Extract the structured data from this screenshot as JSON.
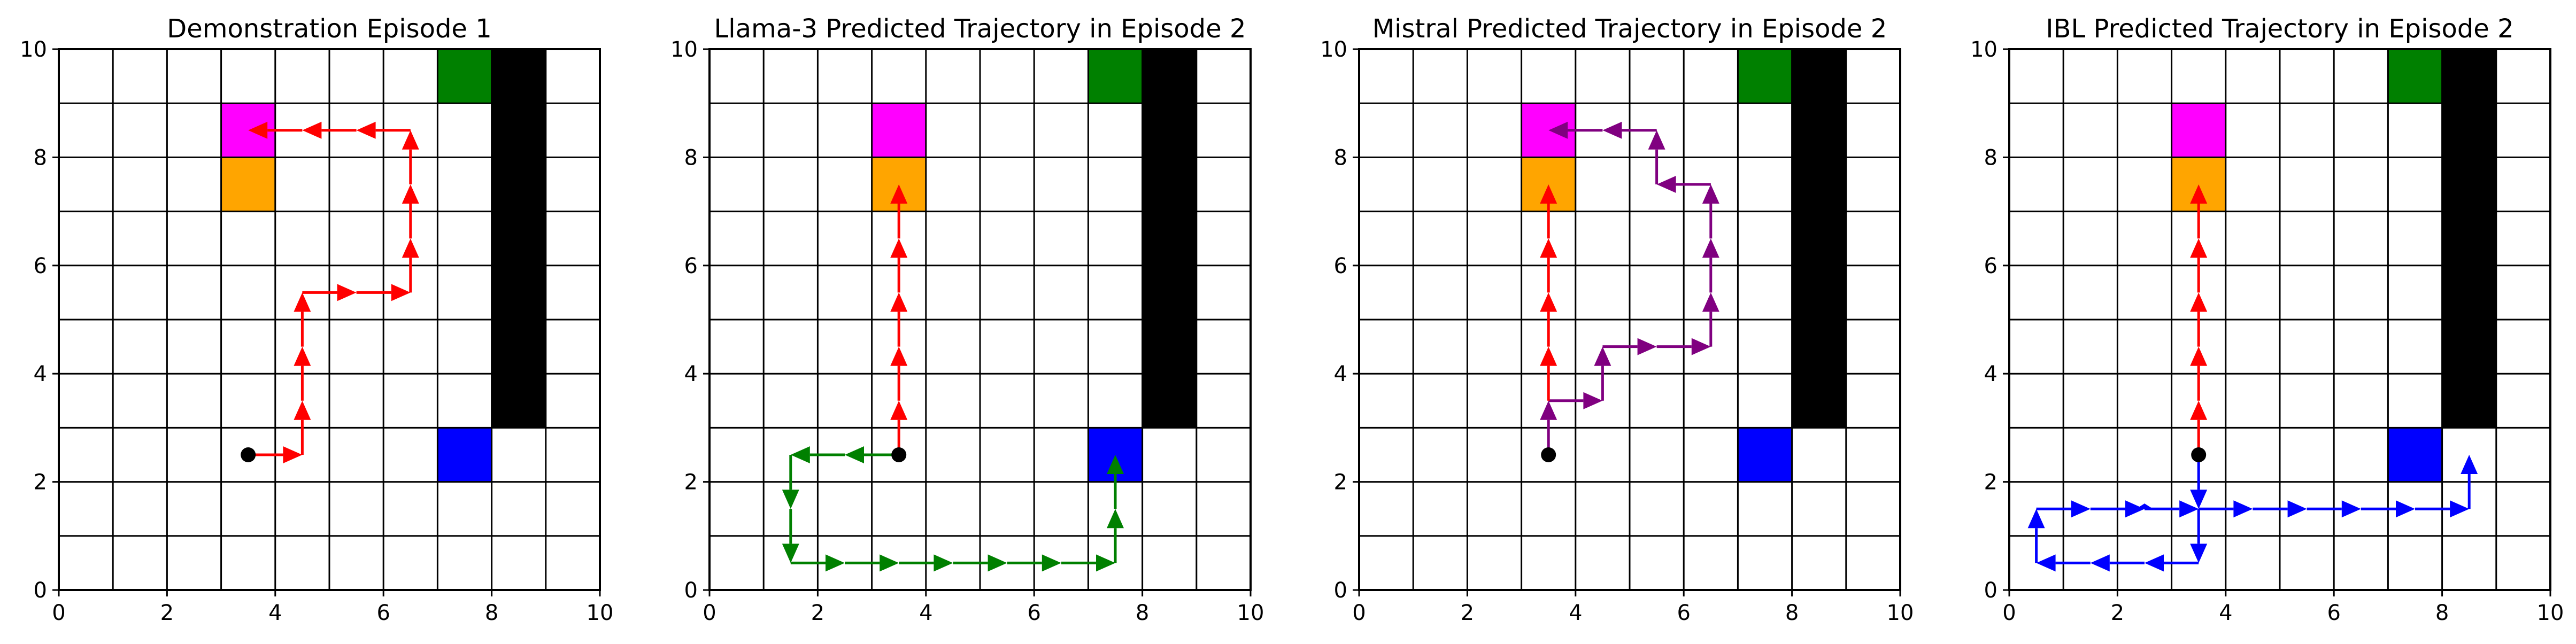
{
  "figure": {
    "panels": [
      "Demonstration Episode 1",
      "Llama-3 Predicted Trajectory in Episode 2",
      "Mistral Predicted Trajectory in Episode 2",
      "IBL Predicted Trajectory in Episode 2"
    ]
  },
  "chart_data": [
    {
      "type": "gridworld",
      "title": "Demonstration Episode 1",
      "xlim": [
        0,
        10
      ],
      "ylim": [
        0,
        10
      ],
      "xticks": [
        0,
        2,
        4,
        6,
        8,
        10
      ],
      "yticks": [
        0,
        2,
        4,
        6,
        8,
        10
      ],
      "grid": true,
      "cells": [
        {
          "x": 7,
          "y": 9,
          "color": "#008000"
        },
        {
          "x": 8,
          "y": 3,
          "w": 1,
          "h": 7,
          "color": "#000000"
        },
        {
          "x": 7,
          "y": 2,
          "color": "#0000ff"
        },
        {
          "x": 3,
          "y": 8,
          "color": "#ff00ff"
        },
        {
          "x": 3,
          "y": 7,
          "color": "#ffa500"
        }
      ],
      "start": [
        3.5,
        2.5
      ],
      "trajectories": [
        {
          "color": "#ff0000",
          "points": [
            [
              3.5,
              2.5
            ],
            [
              4.5,
              2.5
            ],
            [
              4.5,
              3.5
            ],
            [
              4.5,
              4.5
            ],
            [
              4.5,
              5.5
            ],
            [
              5.5,
              5.5
            ],
            [
              6.5,
              5.5
            ],
            [
              6.5,
              6.5
            ],
            [
              6.5,
              7.5
            ],
            [
              6.5,
              8.5
            ],
            [
              5.5,
              8.5
            ],
            [
              4.5,
              8.5
            ],
            [
              3.5,
              8.5
            ]
          ]
        }
      ]
    },
    {
      "type": "gridworld",
      "title": "Llama-3 Predicted Trajectory in Episode 2",
      "xlim": [
        0,
        10
      ],
      "ylim": [
        0,
        10
      ],
      "xticks": [
        0,
        2,
        4,
        6,
        8,
        10
      ],
      "yticks": [
        0,
        2,
        4,
        6,
        8,
        10
      ],
      "grid": true,
      "cells": [
        {
          "x": 7,
          "y": 9,
          "color": "#008000"
        },
        {
          "x": 8,
          "y": 3,
          "w": 1,
          "h": 7,
          "color": "#000000"
        },
        {
          "x": 7,
          "y": 2,
          "color": "#0000ff"
        },
        {
          "x": 3,
          "y": 8,
          "color": "#ff00ff"
        },
        {
          "x": 3,
          "y": 7,
          "color": "#ffa500"
        }
      ],
      "start": [
        3.5,
        2.5
      ],
      "trajectories": [
        {
          "color": "#008000",
          "points": [
            [
              3.5,
              2.5
            ],
            [
              2.5,
              2.5
            ],
            [
              1.5,
              2.5
            ],
            [
              1.5,
              1.5
            ],
            [
              1.5,
              0.5
            ],
            [
              2.5,
              0.5
            ],
            [
              3.5,
              0.5
            ],
            [
              4.5,
              0.5
            ],
            [
              5.5,
              0.5
            ],
            [
              6.5,
              0.5
            ],
            [
              7.5,
              0.5
            ],
            [
              7.5,
              1.5
            ],
            [
              7.5,
              2.5
            ]
          ]
        },
        {
          "color": "#ff0000",
          "points": [
            [
              3.5,
              2.5
            ],
            [
              3.5,
              3.5
            ],
            [
              3.5,
              4.5
            ],
            [
              3.5,
              5.5
            ],
            [
              3.5,
              6.5
            ],
            [
              3.5,
              7.5
            ]
          ]
        }
      ]
    },
    {
      "type": "gridworld",
      "title": "Mistral Predicted Trajectory in Episode 2",
      "xlim": [
        0,
        10
      ],
      "ylim": [
        0,
        10
      ],
      "xticks": [
        0,
        2,
        4,
        6,
        8,
        10
      ],
      "yticks": [
        0,
        2,
        4,
        6,
        8,
        10
      ],
      "grid": true,
      "cells": [
        {
          "x": 7,
          "y": 9,
          "color": "#008000"
        },
        {
          "x": 8,
          "y": 3,
          "w": 1,
          "h": 7,
          "color": "#000000"
        },
        {
          "x": 7,
          "y": 2,
          "color": "#0000ff"
        },
        {
          "x": 3,
          "y": 8,
          "color": "#ff00ff"
        },
        {
          "x": 3,
          "y": 7,
          "color": "#ffa500"
        }
      ],
      "start": [
        3.5,
        2.5
      ],
      "trajectories": [
        {
          "color": "#800080",
          "points": [
            [
              3.5,
              2.5
            ],
            [
              3.5,
              3.5
            ],
            [
              4.5,
              3.5
            ],
            [
              4.5,
              4.5
            ],
            [
              5.5,
              4.5
            ],
            [
              6.5,
              4.5
            ],
            [
              6.5,
              5.5
            ],
            [
              6.5,
              6.5
            ],
            [
              6.5,
              7.5
            ],
            [
              5.5,
              7.5
            ],
            [
              5.5,
              8.5
            ],
            [
              4.5,
              8.5
            ],
            [
              3.5,
              8.5
            ]
          ]
        },
        {
          "color": "#ff0000",
          "points": [
            [
              3.5,
              3.5
            ],
            [
              3.5,
              4.5
            ],
            [
              3.5,
              5.5
            ],
            [
              3.5,
              6.5
            ],
            [
              3.5,
              7.5
            ]
          ]
        }
      ]
    },
    {
      "type": "gridworld",
      "title": "IBL Predicted Trajectory in Episode 2",
      "xlim": [
        0,
        10
      ],
      "ylim": [
        0,
        10
      ],
      "xticks": [
        0,
        2,
        4,
        6,
        8,
        10
      ],
      "yticks": [
        0,
        2,
        4,
        6,
        8,
        10
      ],
      "grid": true,
      "cells": [
        {
          "x": 7,
          "y": 9,
          "color": "#008000"
        },
        {
          "x": 8,
          "y": 3,
          "w": 1,
          "h": 7,
          "color": "#000000"
        },
        {
          "x": 7,
          "y": 2,
          "color": "#0000ff"
        },
        {
          "x": 3,
          "y": 8,
          "color": "#ff00ff"
        },
        {
          "x": 3,
          "y": 7,
          "color": "#ffa500"
        }
      ],
      "start": [
        3.5,
        2.5
      ],
      "trajectories": [
        {
          "color": "#0000ff",
          "points": [
            [
              3.5,
              2.5
            ],
            [
              3.5,
              1.5
            ],
            [
              3.5,
              0.5
            ],
            [
              2.5,
              0.5
            ],
            [
              1.5,
              0.5
            ],
            [
              0.5,
              0.5
            ],
            [
              0.5,
              1.5
            ],
            [
              1.5,
              1.5
            ],
            [
              2.5,
              1.5
            ],
            [
              3.5,
              1.5
            ],
            [
              4.5,
              1.5
            ],
            [
              5.5,
              1.5
            ],
            [
              6.5,
              1.5
            ],
            [
              7.5,
              1.5
            ],
            [
              8.5,
              1.5
            ],
            [
              8.5,
              2.5
            ]
          ]
        },
        {
          "color": "#0000ff",
          "points": [
            [
              2.5,
              1.5
            ],
            [
              2.5,
              1.6
            ]
          ]
        },
        {
          "color": "#ff0000",
          "points": [
            [
              3.5,
              2.5
            ],
            [
              3.5,
              3.5
            ],
            [
              3.5,
              4.5
            ],
            [
              3.5,
              5.5
            ],
            [
              3.5,
              6.5
            ],
            [
              3.5,
              7.5
            ]
          ]
        }
      ]
    }
  ]
}
